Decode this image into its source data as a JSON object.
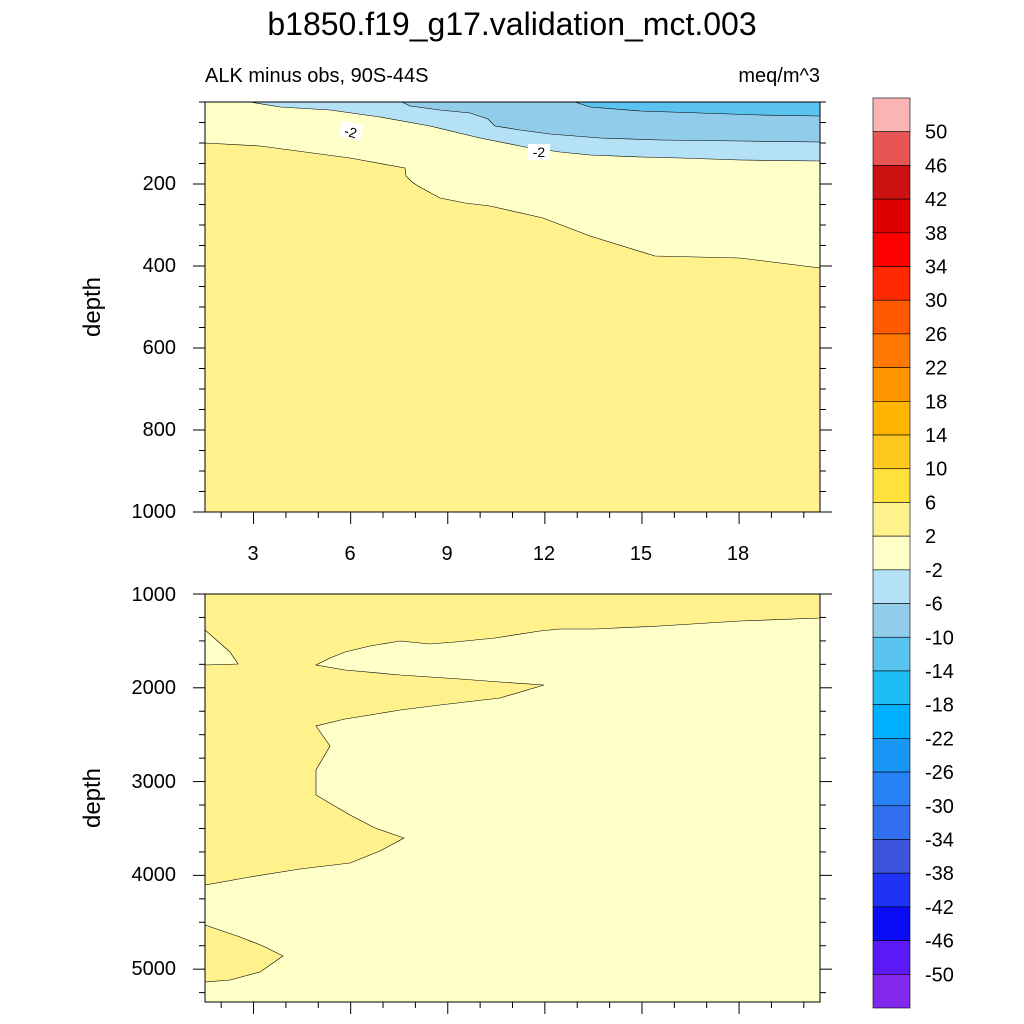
{
  "title": "b1850.f19_g17.validation_mct.003",
  "top_panel": {
    "left_label": "ALK minus obs, 90S-44S",
    "right_label": "meq/m^3",
    "ylabel": "depth",
    "yticks": [
      "200",
      "400",
      "600",
      "800",
      "1000"
    ],
    "xticks": [
      "3",
      "6",
      "9",
      "12",
      "15",
      "18"
    ],
    "contour_labels": [
      "-2",
      "-2"
    ]
  },
  "bottom_panel": {
    "ylabel": "depth",
    "yticks": [
      "1000",
      "2000",
      "3000",
      "4000",
      "5000"
    ]
  },
  "colorbar": {
    "labels": [
      "50",
      "46",
      "42",
      "38",
      "34",
      "30",
      "26",
      "22",
      "18",
      "14",
      "10",
      "6",
      "2",
      "-2",
      "-6",
      "-10",
      "-14",
      "-18",
      "-22",
      "-26",
      "-30",
      "-34",
      "-38",
      "-42",
      "-46",
      "-50"
    ],
    "colors": [
      "#fbb4b4",
      "#e85555",
      "#cc1111",
      "#dd0000",
      "#ff0000",
      "#ff2800",
      "#ff5a00",
      "#ff7800",
      "#ff9600",
      "#ffb400",
      "#ffc81e",
      "#ffe13c",
      "#fff28c",
      "#ffffc8",
      "#b4e1f5",
      "#91cdeb",
      "#5ac3f0",
      "#1ebef5",
      "#00afff",
      "#1996f5",
      "#2882f5",
      "#326ef0",
      "#3c55dc",
      "#1e32f5",
      "#0a0af5",
      "#5a19f5",
      "#8228eb"
    ]
  },
  "chart_data": [
    {
      "type": "heatmap",
      "title": "b1850.f19_g17.validation_mct.003",
      "subtitle": "ALK minus obs, 90S-44S",
      "units": "meq/m^3",
      "xlabel": "",
      "ylabel": "depth",
      "x_range": [
        1.5,
        20.5
      ],
      "y_range": [
        0,
        1000
      ],
      "y_reversed": true,
      "xticks": [
        3,
        6,
        9,
        12,
        15,
        18
      ],
      "yticks": [
        200,
        400,
        600,
        800,
        1000
      ],
      "contour_levels": [
        -50,
        -46,
        -42,
        -38,
        -34,
        -30,
        -26,
        -22,
        -18,
        -14,
        -10,
        -6,
        -2,
        2,
        6,
        10,
        14,
        18,
        22,
        26,
        30,
        34,
        38,
        42,
        46,
        50
      ],
      "regions": [
        {
          "range": "2 to 6",
          "description": "below boundary",
          "boundary": [
            [
              1.5,
              100
            ],
            [
              4,
              110
            ],
            [
              6,
              125
            ],
            [
              7.7,
              160
            ],
            [
              7.9,
              195
            ],
            [
              9,
              235
            ],
            [
              10.5,
              250
            ],
            [
              12,
              285
            ],
            [
              13.5,
              330
            ],
            [
              15.5,
              380
            ],
            [
              18,
              385
            ],
            [
              20.5,
              405
            ]
          ]
        },
        {
          "range": "-2 to 2",
          "boundary_upper": [
            [
              3.1,
              0
            ],
            [
              7,
              50
            ],
            [
              10,
              80
            ],
            [
              13,
              105
            ],
            [
              17,
              120
            ],
            [
              20.5,
              145
            ]
          ]
        },
        {
          "range": "-6 to -2",
          "boundary_upper": [
            [
              7,
              0
            ],
            [
              10,
              10
            ],
            [
              10.5,
              30
            ],
            [
              14,
              80
            ],
            [
              20.5,
              95
            ]
          ]
        },
        {
          "range": "-10 to -6",
          "boundary_upper": [
            [
              14,
              0
            ],
            [
              20.5,
              5
            ]
          ]
        },
        {
          "range": "-14 to -10",
          "location": "upper-right corner, surface"
        }
      ]
    },
    {
      "type": "heatmap",
      "xlabel": "",
      "ylabel": "depth",
      "x_range": [
        1.5,
        20.5
      ],
      "y_range": [
        1000,
        5350
      ],
      "y_reversed": true,
      "xticks": [
        3,
        6,
        9,
        12,
        15,
        18
      ],
      "yticks": [
        1000,
        2000,
        3000,
        4000,
        5000
      ],
      "regions": [
        {
          "range": "2 to 6",
          "description": "western wedge from surface to ~4100 m with tongue to x~12 at 1950 m",
          "boundary": [
            [
              1.5,
              1380
            ],
            [
              2.5,
              1720
            ],
            [
              1.5,
              1750
            ],
            [
              1.5,
              4120
            ],
            [
              5,
              3900
            ],
            [
              6,
              3820
            ],
            [
              8,
              3600
            ],
            [
              6,
              3300
            ],
            [
              5,
              3100
            ],
            [
              5,
              2800
            ],
            [
              5.5,
              2650
            ],
            [
              5,
              2400
            ],
            [
              7,
              2280
            ],
            [
              9,
              2200
            ],
            [
              11,
              2080
            ],
            [
              12,
              1960
            ],
            [
              10,
              1870
            ],
            [
              8,
              1820
            ],
            [
              6.5,
              1830
            ],
            [
              5.2,
              1790
            ],
            [
              6,
              1620
            ],
            [
              8,
              1560
            ],
            [
              10,
              1500
            ],
            [
              12,
              1380
            ],
            [
              20.5,
              1260
            ]
          ]
        },
        {
          "range": "2 to 6",
          "description": "small patch near bottom-left",
          "boundary": [
            [
              1.5,
              4550
            ],
            [
              3,
              4750
            ],
            [
              4,
              4850
            ],
            [
              2.5,
              5130
            ],
            [
              1.5,
              5150
            ]
          ]
        },
        {
          "range": "-2 to 2",
          "description": "remainder of the panel"
        }
      ]
    }
  ]
}
